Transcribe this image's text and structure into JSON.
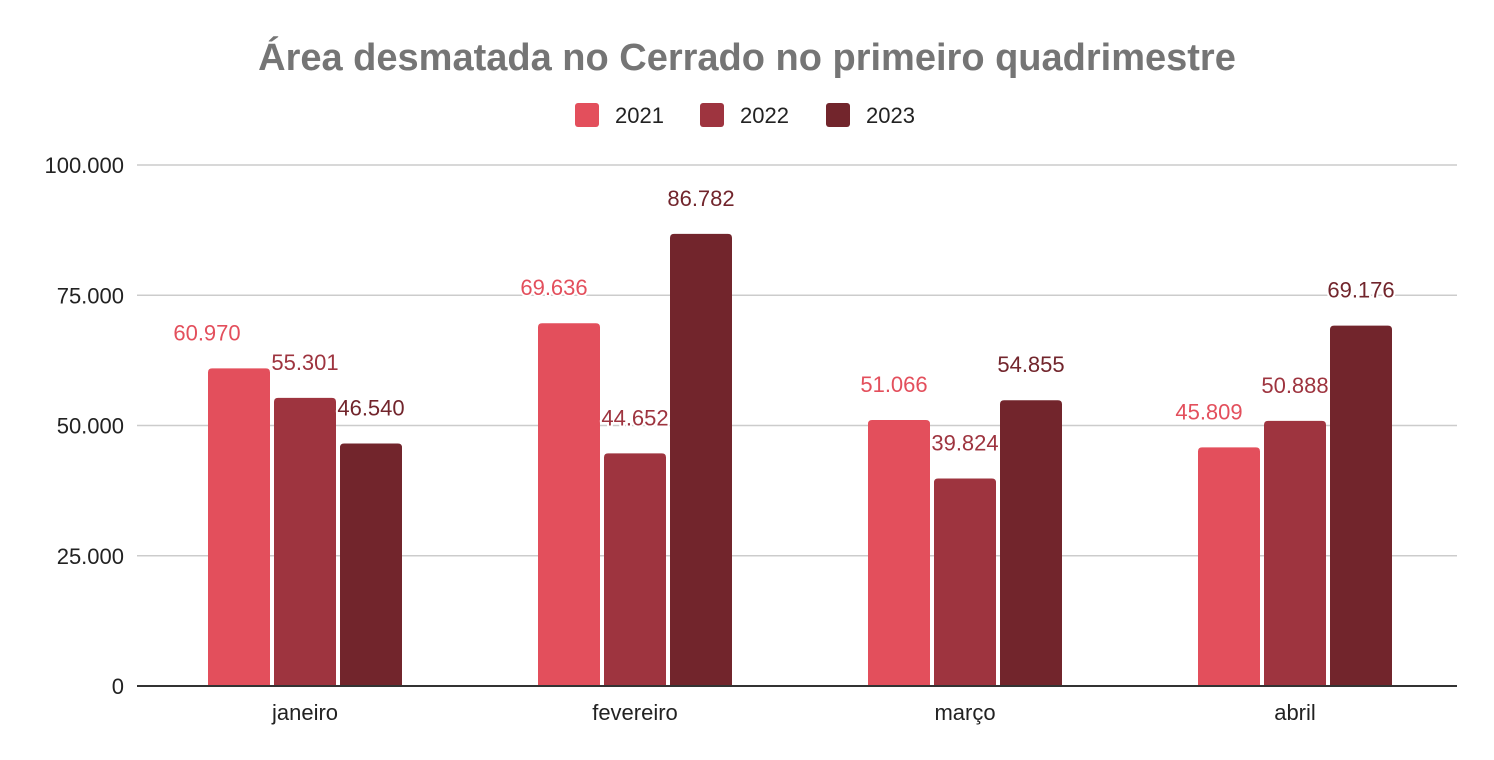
{
  "chart_data": {
    "type": "bar",
    "title": "Área desmatada no Cerrado no primeiro quadrimestre",
    "xlabel": "",
    "ylabel": "",
    "categories": [
      "janeiro",
      "fevereiro",
      "março",
      "abril"
    ],
    "series": [
      {
        "name": "2021",
        "color": "#e34f5c",
        "values": [
          60970,
          69636,
          51066,
          45809
        ],
        "labels": [
          "60.970",
          "69.636",
          "51.066",
          "45.809"
        ]
      },
      {
        "name": "2022",
        "color": "#9e343f",
        "values": [
          55301,
          44652,
          39824,
          50888
        ],
        "labels": [
          "55.301",
          "44.652",
          "39.824",
          "50.888"
        ]
      },
      {
        "name": "2023",
        "color": "#72252c",
        "values": [
          46540,
          86782,
          54855,
          69176
        ],
        "labels": [
          "46.540",
          "86.782",
          "54.855",
          "69.176"
        ]
      }
    ],
    "ylim": [
      0,
      100000
    ],
    "yticks": [
      0,
      25000,
      50000,
      75000,
      100000
    ],
    "ytick_labels": [
      "0",
      "25.000",
      "50.000",
      "75.000",
      "100.000"
    ],
    "grid": true,
    "legend_position": "top-center"
  }
}
